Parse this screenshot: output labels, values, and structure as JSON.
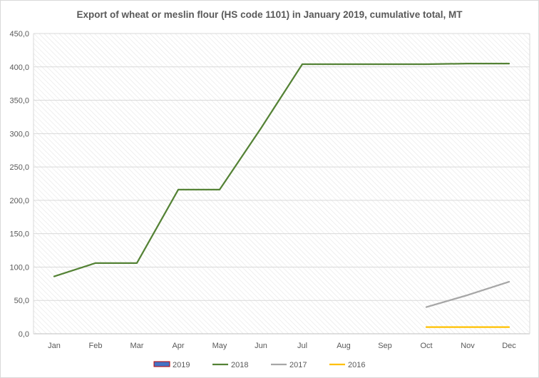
{
  "chart_data": {
    "type": "line",
    "title": "Export of wheat or meslin flour (HS code 1101) in January 2019, cumulative total, MT",
    "xlabel": "",
    "ylabel": "",
    "categories": [
      "Jan",
      "Feb",
      "Mar",
      "Apr",
      "May",
      "Jun",
      "Jul",
      "Aug",
      "Sep",
      "Oct",
      "Nov",
      "Dec"
    ],
    "ylim": [
      0,
      450
    ],
    "yticks": [
      "0,0",
      "50,0",
      "100,0",
      "150,0",
      "200,0",
      "250,0",
      "300,0",
      "350,0",
      "400,0",
      "450,0"
    ],
    "grid": true,
    "background": "diagonal hatch",
    "legend_position": "bottom",
    "series": [
      {
        "name": "2019",
        "kind": "bar",
        "color": "#4472c4",
        "border_color": "#c00000",
        "values": [
          null,
          null,
          null,
          null,
          null,
          null,
          null,
          null,
          null,
          null,
          null,
          null
        ]
      },
      {
        "name": "2018",
        "kind": "line",
        "color": "#548235",
        "values": [
          86,
          106,
          106,
          216,
          216,
          308,
          404,
          404,
          404,
          404,
          405,
          405
        ]
      },
      {
        "name": "2017",
        "kind": "line",
        "color": "#a6a6a6",
        "values": [
          null,
          null,
          null,
          null,
          null,
          null,
          null,
          null,
          null,
          40,
          58,
          78
        ]
      },
      {
        "name": "2016",
        "kind": "line",
        "color": "#ffc000",
        "values": [
          null,
          null,
          null,
          null,
          null,
          null,
          null,
          null,
          null,
          10,
          10,
          10
        ]
      }
    ]
  }
}
